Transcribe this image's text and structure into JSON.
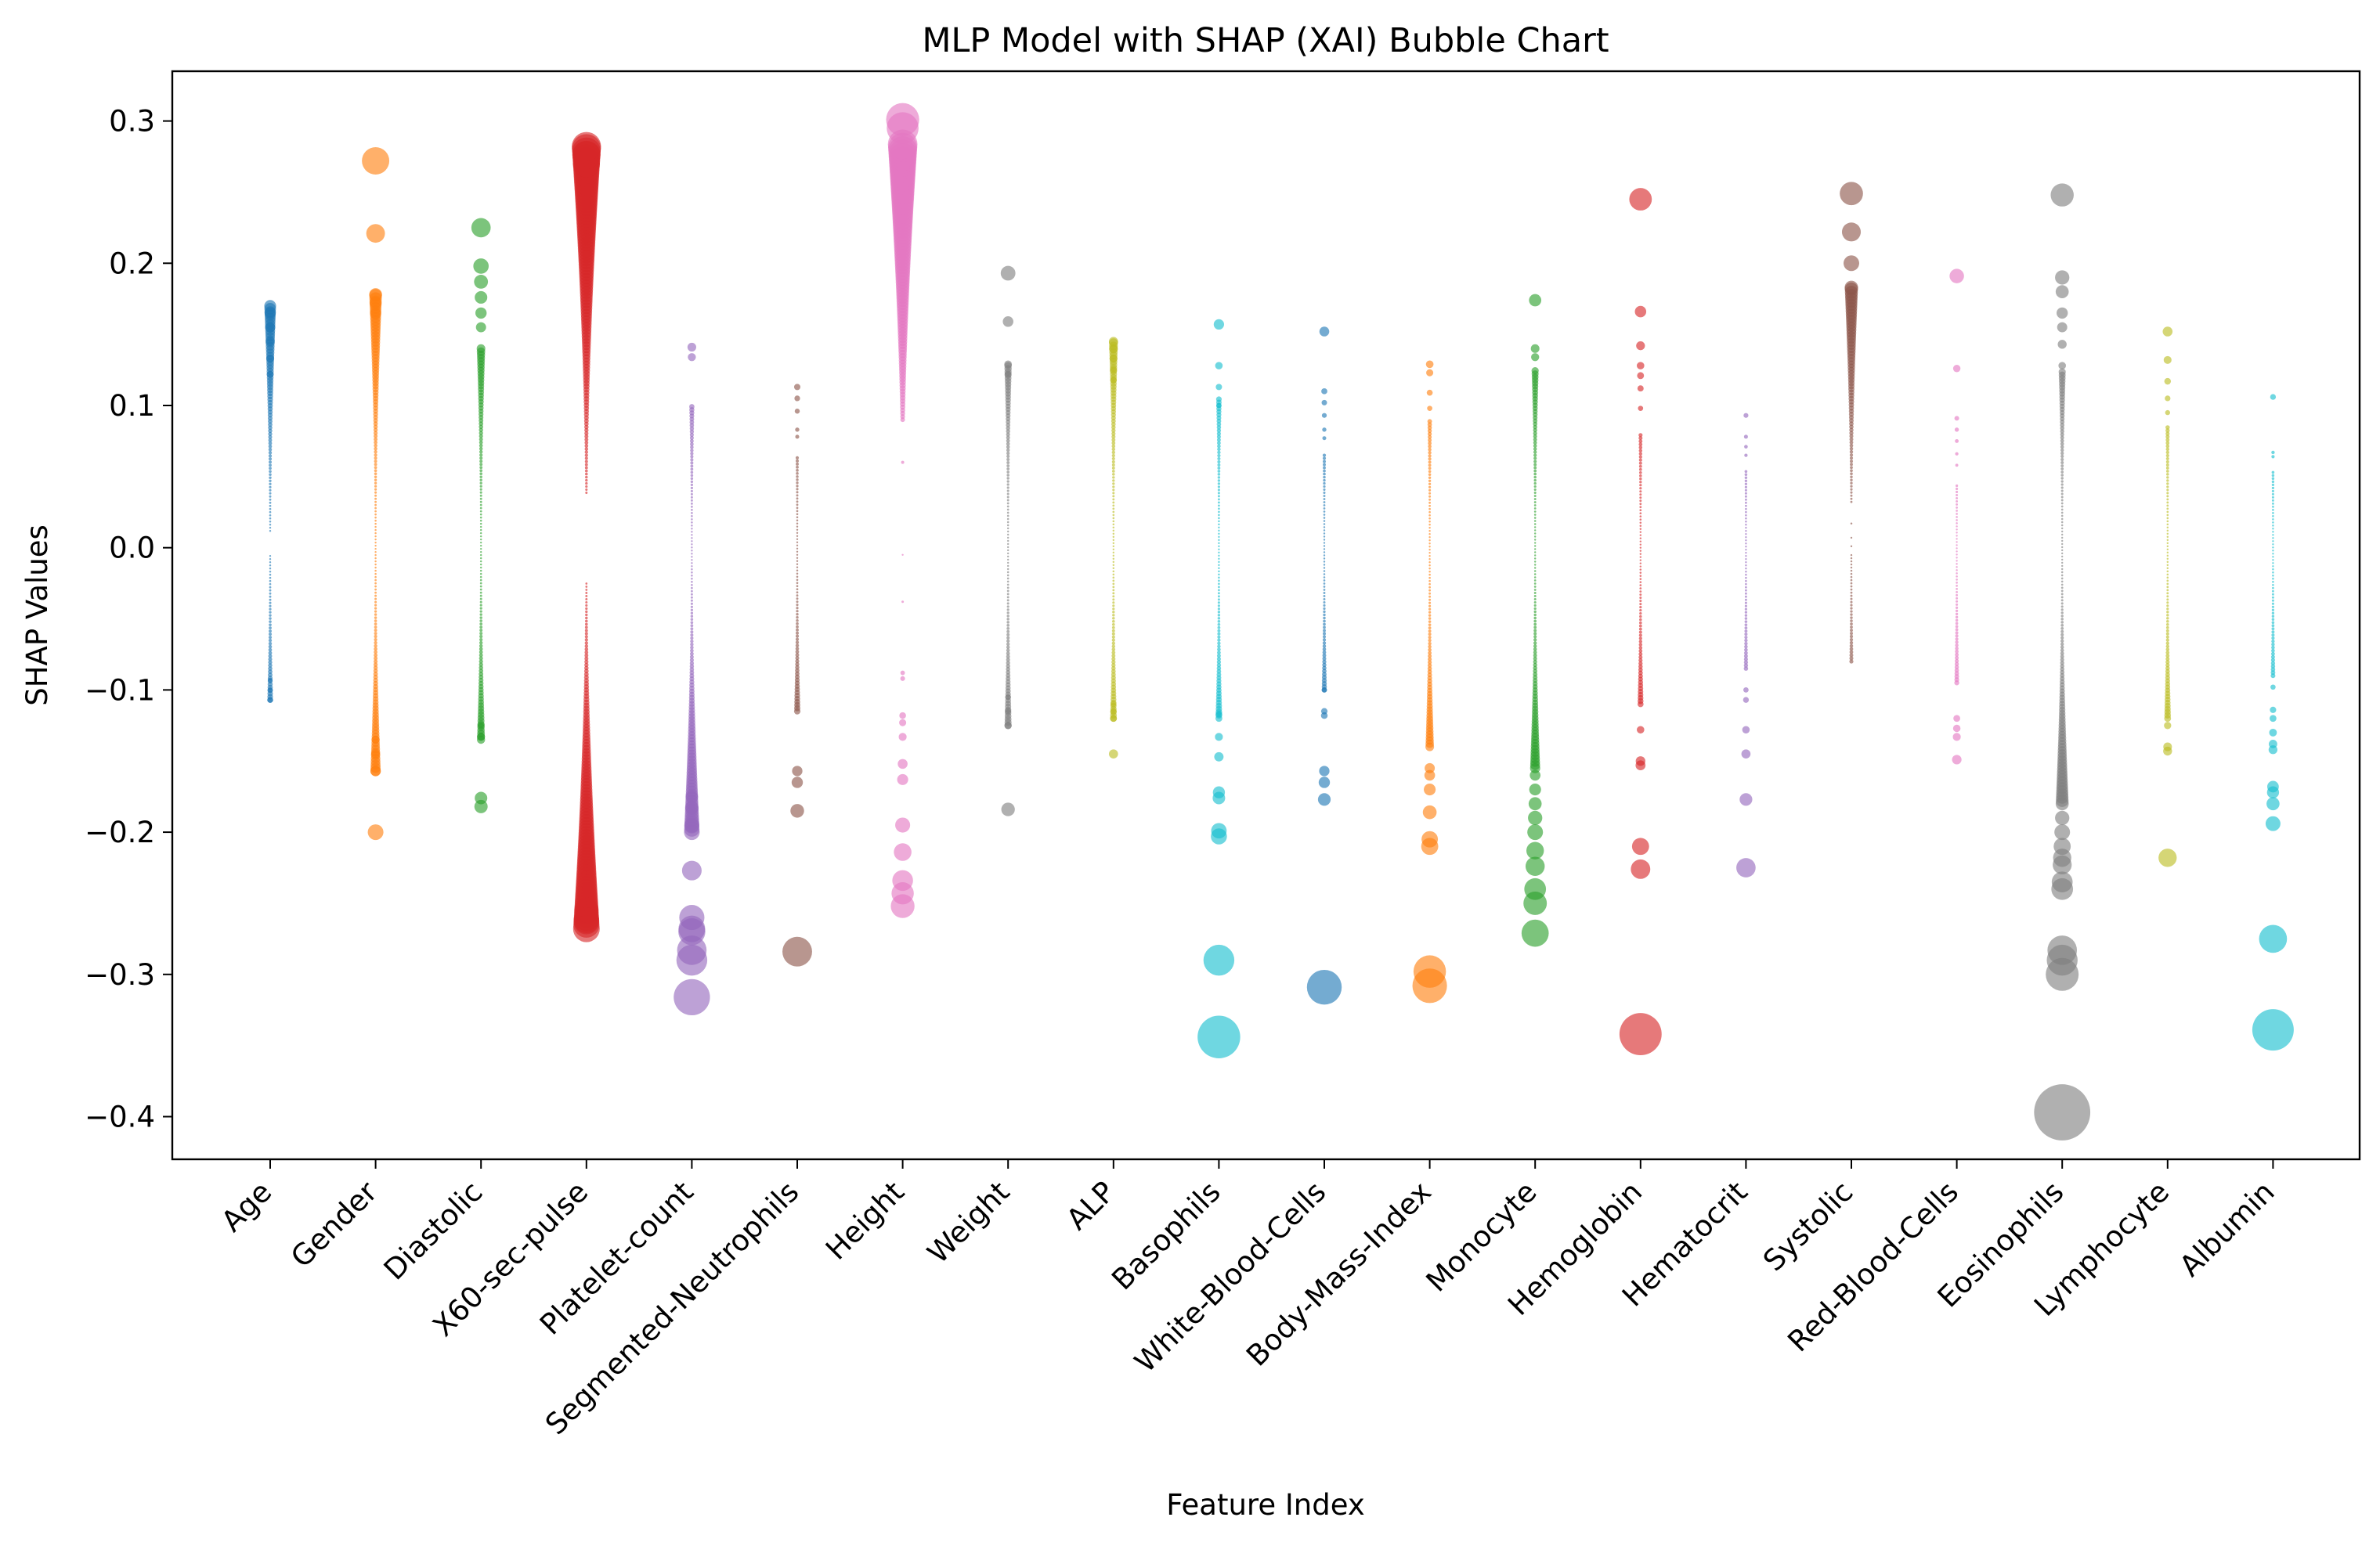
{
  "chart_data": {
    "type": "scatter",
    "title": "MLP Model with SHAP (XAI) Bubble Chart",
    "xlabel": "Feature Index",
    "ylabel": "SHAP Values",
    "ylim": [
      -0.43,
      0.335
    ],
    "yticks": [
      0.3,
      0.2,
      0.1,
      0.0,
      -0.1,
      -0.2,
      -0.3,
      -0.4
    ],
    "ytick_labels": [
      "0.3",
      "0.2",
      "0.1",
      "0.0",
      "−0.1",
      "−0.2",
      "−0.3",
      "−0.4"
    ],
    "grid": false,
    "legend": "none",
    "series": [
      {
        "name": "Age",
        "color": "#1f77b4",
        "min": -0.107,
        "max": 0.17,
        "gap": [
          -0.005,
          0.01
        ],
        "outliers": [
          0.17,
          0.165,
          0.155,
          0.145,
          0.133,
          0.122,
          -0.093,
          -0.1,
          -0.107
        ]
      },
      {
        "name": "Gender",
        "color": "#ff7f0e",
        "min": -0.157,
        "max": 0.178,
        "outliers": [
          0.272,
          0.221,
          0.178,
          0.172,
          0.165,
          -0.135,
          -0.145,
          -0.157,
          -0.2
        ]
      },
      {
        "name": "Diastolic",
        "color": "#2ca02c",
        "min": -0.135,
        "max": 0.14,
        "outliers": [
          0.225,
          0.198,
          0.187,
          0.176,
          0.165,
          0.155,
          -0.125,
          -0.133,
          -0.176,
          -0.182
        ]
      },
      {
        "name": "X60-sec-pulse",
        "color": "#d62728",
        "min": -0.265,
        "max": 0.282,
        "gap": [
          -0.025,
          0.038
        ],
        "outliers": [
          0.282,
          0.276,
          0.27,
          -0.255,
          -0.262,
          -0.268
        ]
      },
      {
        "name": "Platelet-count",
        "color": "#9467bd",
        "min": -0.2,
        "max": 0.1,
        "outliers": [
          0.141,
          0.134,
          -0.175,
          -0.183,
          -0.195,
          -0.227,
          -0.26,
          -0.268,
          -0.27,
          -0.283,
          -0.29,
          -0.316
        ]
      },
      {
        "name": "Segmented-Neutrophils",
        "color": "#8c564b",
        "min": -0.115,
        "max": 0.065,
        "outliers": [
          0.113,
          0.105,
          0.096,
          0.083,
          0.078,
          -0.157,
          -0.165,
          -0.185,
          -0.284
        ]
      },
      {
        "name": "Height",
        "color": "#e377c2",
        "min": 0.09,
        "max": 0.285,
        "gap": [
          -0.005,
          0.0
        ],
        "extra": [
          -0.005,
          -0.038
        ],
        "outliers": [
          0.301,
          0.295,
          0.06,
          -0.088,
          -0.092,
          -0.118,
          -0.123,
          -0.133,
          -0.152,
          -0.163,
          -0.195,
          -0.214,
          -0.234,
          -0.243,
          -0.252
        ]
      },
      {
        "name": "Weight",
        "color": "#7f7f7f",
        "min": -0.125,
        "max": 0.13,
        "outliers": [
          0.193,
          0.159,
          0.129,
          0.122,
          -0.105,
          -0.115,
          -0.125,
          -0.184
        ]
      },
      {
        "name": "ALP",
        "color": "#bcbd22",
        "min": -0.12,
        "max": 0.145,
        "outliers": [
          0.145,
          0.14,
          0.133,
          0.125,
          0.118,
          -0.11,
          -0.115,
          -0.12,
          -0.145
        ]
      },
      {
        "name": "Basophils",
        "color": "#17becf",
        "min": -0.12,
        "max": 0.105,
        "outliers": [
          0.157,
          0.128,
          0.113,
          0.1,
          -0.117,
          -0.133,
          -0.147,
          -0.172,
          -0.176,
          -0.199,
          -0.203,
          -0.29,
          -0.344
        ]
      },
      {
        "name": "White-Blood-Cells",
        "color": "#1f77b4",
        "min": -0.1,
        "max": 0.065,
        "outliers": [
          0.152,
          0.11,
          0.102,
          0.093,
          0.083,
          0.077,
          -0.1,
          -0.115,
          -0.118,
          -0.157,
          -0.165,
          -0.177,
          -0.309
        ]
      },
      {
        "name": "Body-Mass-Index",
        "color": "#ff7f0e",
        "min": -0.14,
        "max": 0.09,
        "outliers": [
          0.129,
          0.123,
          0.109,
          0.098,
          -0.155,
          -0.16,
          -0.17,
          -0.186,
          -0.205,
          -0.21,
          -0.298,
          -0.308
        ]
      },
      {
        "name": "Monocyte",
        "color": "#2ca02c",
        "min": -0.155,
        "max": 0.125,
        "outliers": [
          0.174,
          0.14,
          0.134,
          -0.16,
          -0.17,
          -0.18,
          -0.19,
          -0.2,
          -0.213,
          -0.224,
          -0.24,
          -0.25,
          -0.271
        ]
      },
      {
        "name": "Hemoglobin",
        "color": "#d62728",
        "min": -0.11,
        "max": 0.08,
        "outliers": [
          0.245,
          0.166,
          0.142,
          0.128,
          0.121,
          0.112,
          0.098,
          -0.128,
          -0.15,
          -0.153,
          -0.21,
          -0.226,
          -0.342
        ]
      },
      {
        "name": "Hematocrit",
        "color": "#9467bd",
        "min": -0.085,
        "max": 0.055,
        "outliers": [
          0.093,
          0.078,
          0.071,
          0.065,
          -0.1,
          -0.107,
          -0.128,
          -0.145,
          -0.177,
          -0.225
        ]
      },
      {
        "name": "Systolic",
        "color": "#8c564b",
        "min": -0.08,
        "max": 0.183,
        "gap": [
          -0.005,
          0.03
        ],
        "extra": [
          0.017,
          0.007,
          0.001
        ],
        "outliers": [
          0.249,
          0.222,
          0.2,
          0.183
        ]
      },
      {
        "name": "Red-Blood-Cells",
        "color": "#e377c2",
        "min": -0.095,
        "max": 0.045,
        "outliers": [
          0.191,
          0.126,
          0.091,
          0.083,
          0.075,
          0.066,
          0.058,
          -0.12,
          -0.127,
          -0.133,
          -0.149
        ]
      },
      {
        "name": "Eosinophils",
        "color": "#7f7f7f",
        "min": -0.18,
        "max": 0.125,
        "outliers": [
          0.248,
          0.19,
          0.18,
          0.165,
          0.155,
          0.143,
          0.128,
          -0.19,
          -0.2,
          -0.21,
          -0.218,
          -0.223,
          -0.235,
          -0.24,
          -0.283,
          -0.29,
          -0.3,
          -0.397
        ]
      },
      {
        "name": "Lymphocyte",
        "color": "#bcbd22",
        "min": -0.12,
        "max": 0.085,
        "outliers": [
          0.152,
          0.132,
          0.117,
          0.105,
          0.095,
          -0.125,
          -0.14,
          -0.143,
          -0.218
        ]
      },
      {
        "name": "Albumin",
        "color": "#17becf",
        "min": -0.09,
        "max": 0.055,
        "outliers": [
          0.106,
          0.067,
          0.064,
          -0.098,
          -0.114,
          -0.12,
          -0.13,
          -0.138,
          -0.142,
          -0.168,
          -0.172,
          -0.18,
          -0.194,
          -0.275,
          -0.339
        ]
      }
    ]
  }
}
